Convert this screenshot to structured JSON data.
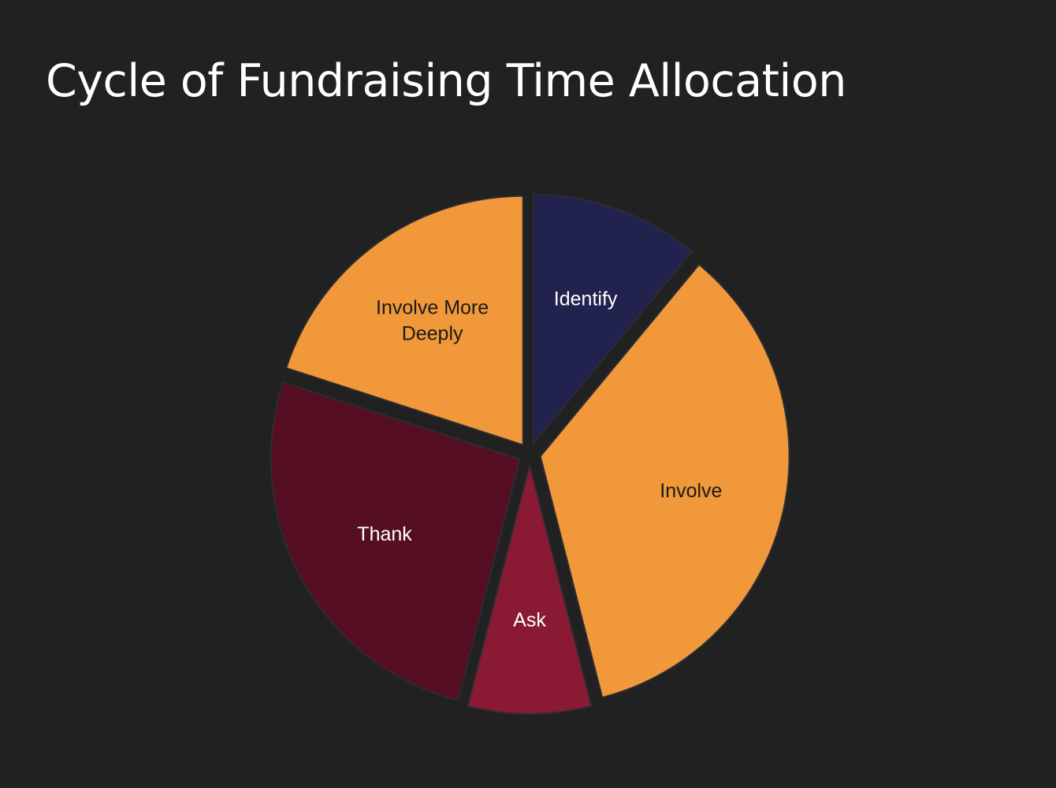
{
  "title": "Cycle of Fundraising Time Allocation",
  "chart_data": {
    "type": "pie",
    "title": "Cycle of Fundraising Time Allocation",
    "exploded": true,
    "start_angle_deg": 90,
    "direction": "clockwise",
    "slices": [
      {
        "label": "Identify",
        "value": 11,
        "color": "#22224f",
        "label_color": "#ffffff"
      },
      {
        "label": "Involve",
        "value": 35,
        "color": "#f0983a",
        "label_color": "#1a1a1a"
      },
      {
        "label": "Ask",
        "value": 8,
        "color": "#8a1a34",
        "label_color": "#ffffff"
      },
      {
        "label": "Thank",
        "value": 26,
        "color": "#560f22",
        "label_color": "#ffffff"
      },
      {
        "label": "Involve More Deeply",
        "value": 20,
        "color": "#f0983a",
        "label_color": "#1a1a1a",
        "label_lines": [
          "Involve More",
          "Deeply"
        ]
      }
    ]
  }
}
